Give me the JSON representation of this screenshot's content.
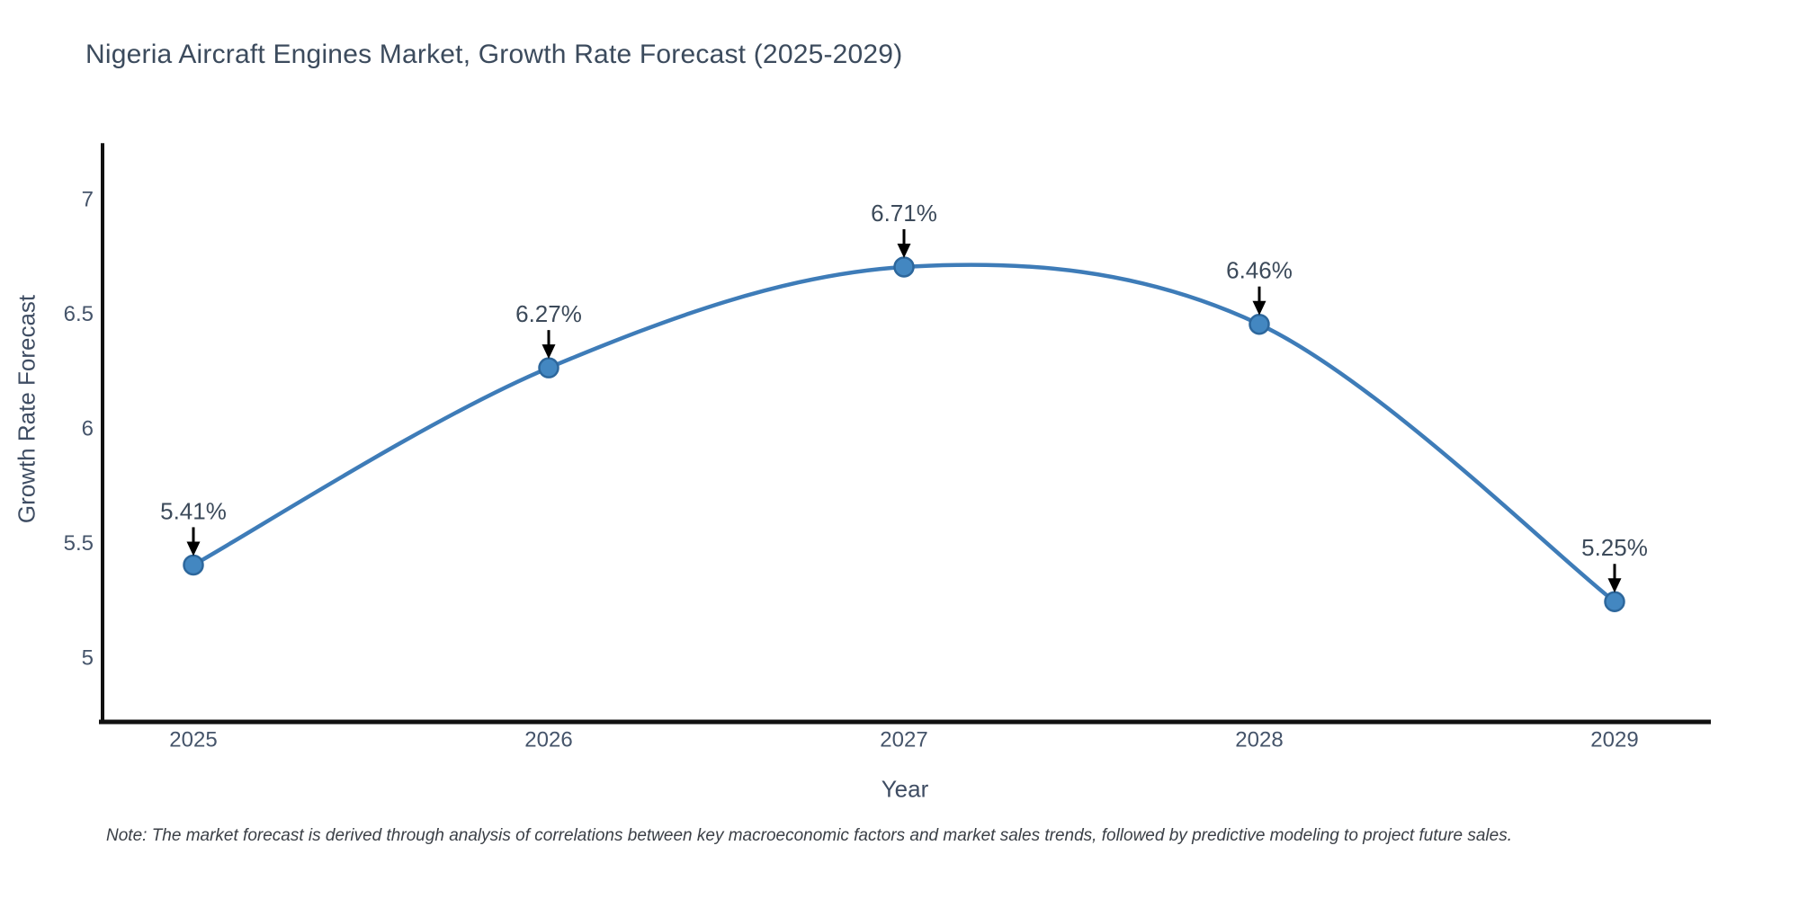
{
  "title": "Nigeria Aircraft Engines Market, Growth Rate Forecast (2025-2029)",
  "note": "Note: The market forecast is derived through analysis of correlations between key macroeconomic factors and market sales trends, followed by predictive modeling to project future sales.",
  "colors": {
    "line": "#3e7cb8",
    "marker_fill": "#4387c1",
    "marker_edge": "#2d679c",
    "axis_line": "#111111",
    "tick_text": "#45546a",
    "annotation_text": "#3c4a5a",
    "arrow": "#000000"
  },
  "chart_data": {
    "type": "line",
    "title": "Nigeria Aircraft Engines Market, Growth Rate Forecast (2025-2029)",
    "xlabel": "Year",
    "ylabel": "Growth Rate Forecast",
    "x": [
      2025,
      2026,
      2027,
      2028,
      2029
    ],
    "values": [
      5.41,
      6.27,
      6.71,
      6.46,
      5.25
    ],
    "point_labels": [
      "5.41%",
      "6.27%",
      "6.71%",
      "6.46%",
      "5.25%"
    ],
    "yticks": [
      5,
      5.5,
      6,
      6.5,
      7
    ],
    "ytick_labels": [
      "5",
      "5.5",
      "6",
      "6.5",
      "7"
    ],
    "xtick_labels": [
      "2025",
      "2026",
      "2027",
      "2028",
      "2029"
    ],
    "ylim": [
      4.71,
      7.25
    ],
    "grid": false,
    "legend": "none",
    "line_style": "smooth-spline",
    "annotation_style": "value label with downward black arrow above each data point"
  }
}
